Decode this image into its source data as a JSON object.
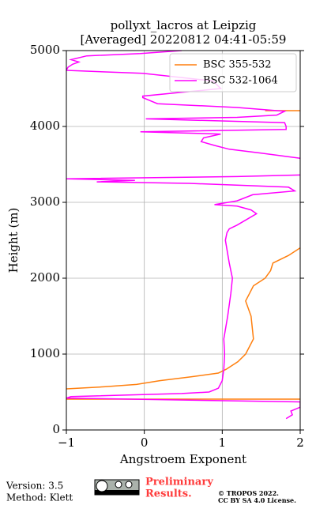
{
  "chart_data": {
    "type": "line",
    "title": "pollyxt_lacros at Leipzig",
    "subtitle": "[Averaged] 20220812 04:41-05:59",
    "x_label": "Angstroem Exponent",
    "y_label": "Height (m)",
    "xlim": [
      -1,
      2
    ],
    "xticks": [
      {
        "value": -1,
        "label": "−1"
      },
      0,
      1,
      2
    ],
    "ylim": [
      0,
      5000
    ],
    "yticks": [
      0,
      1000,
      2000,
      3000,
      4000,
      5000
    ],
    "grid": true,
    "legend": "upper right",
    "series": [
      {
        "name": "BSC 355-532",
        "color": "#ff7f0e",
        "x": [
          -1,
          2,
          null,
          -1,
          -0.5,
          -0.1,
          0.2,
          0.6,
          0.95,
          1.05,
          1.2,
          1.3,
          1.4,
          1.37,
          1.3,
          1.35,
          1.4,
          1.55,
          1.62,
          1.65,
          1.85,
          2.0,
          null,
          1.55,
          2.0
        ],
        "y": [
          406,
          406,
          null,
          542,
          570,
          600,
          650,
          700,
          750,
          800,
          900,
          1000,
          1200,
          1500,
          1700,
          1800,
          1900,
          2000,
          2100,
          2200,
          2300,
          2400,
          null,
          4208,
          4208
        ]
      },
      {
        "name": "BSC 532-1064",
        "color": "#ff00ff",
        "x": [
          1.82,
          1.9,
          1.88,
          2.0,
          2.0,
          -1,
          -0.94,
          0.48,
          0.83,
          0.95,
          1.0,
          1.02,
          1.03,
          1.02,
          1.07,
          1.11,
          1.13,
          1.09,
          1.04,
          1.06,
          1.09,
          1.19,
          1.44,
          1.37,
          1.19,
          0.9,
          1.19,
          1.39,
          1.93,
          1.85,
          0.58,
          -0.61,
          -0.12,
          -1,
          1.19,
          2.0,
          null,
          2.0,
          1.49,
          1.09,
          0.9,
          0.73,
          0.76,
          0.98,
          -0.05,
          1.82,
          1.82,
          1.8,
          0.02,
          1.19,
          1.7,
          1.8,
          1.19,
          0.17,
          -0.02,
          -0.02,
          0.48,
          0.98,
          0.88,
          -0.02,
          -1,
          -0.98,
          -0.92,
          -0.84,
          -0.94,
          -0.74,
          -0.05,
          0.48
        ],
        "y": [
          150,
          200,
          250,
          300,
          370,
          420,
          440,
          480,
          500,
          550,
          650,
          800,
          1000,
          1200,
          1500,
          1800,
          2000,
          2200,
          2500,
          2600,
          2650,
          2700,
          2850,
          2900,
          2950,
          2970,
          3020,
          3100,
          3150,
          3200,
          3250,
          3270,
          3290,
          3310,
          3340,
          3360,
          null,
          3580,
          3650,
          3700,
          3750,
          3800,
          3850,
          3900,
          3930,
          3960,
          4000,
          4050,
          4100,
          4120,
          4150,
          4200,
          4250,
          4300,
          4380,
          4400,
          4450,
          4500,
          4600,
          4700,
          4740,
          4780,
          4820,
          4850,
          4880,
          4930,
          4960,
          5000
        ]
      }
    ]
  },
  "footer": {
    "version": "Version: 3.5",
    "method": "Method: Klett",
    "notice": [
      "Preliminary",
      "Results."
    ],
    "copyright": [
      "© TROPOS 2022.",
      "CC BY SA 4.0 License."
    ]
  }
}
